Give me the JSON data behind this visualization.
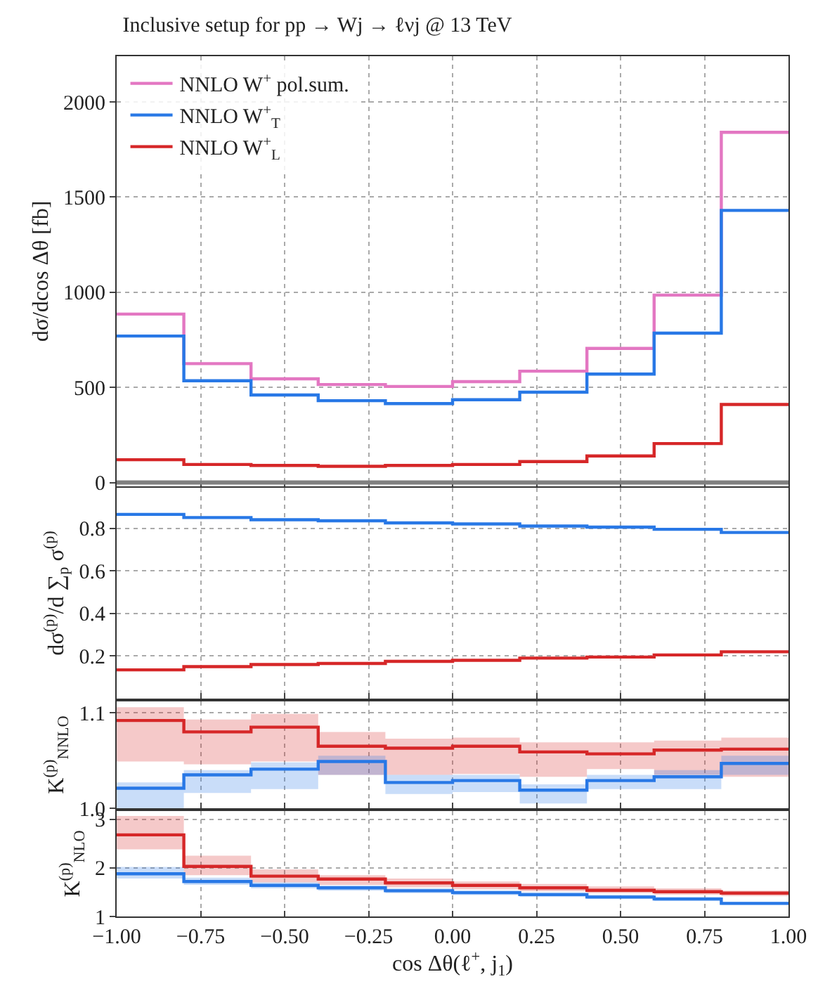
{
  "chart_data": [
    {
      "type": "step",
      "title": "Inclusive setup for pp → Wj → ℓνj @ 13 TeV",
      "ylabel": "dσ/dcos Δθ [fb]",
      "x": [
        -1,
        -0.8,
        -0.6,
        -0.4,
        -0.2,
        0,
        0.2,
        0.4,
        0.6,
        0.8,
        1
      ],
      "series": [
        {
          "name": "NNLO W$^{+}$ pol.sum.",
          "color": "#e377c2",
          "values": [
            885,
            625,
            545,
            515,
            505,
            530,
            585,
            705,
            985,
            1840,
            1840
          ]
        },
        {
          "name": "NNLO W$^{+}$$_{T}$",
          "color": "#2878e6",
          "values": [
            770,
            535,
            460,
            430,
            415,
            435,
            475,
            570,
            785,
            1430,
            1430
          ]
        },
        {
          "name": "NNLO W$^{+}$$_{L}$",
          "color": "#d62728",
          "values": [
            120,
            95,
            90,
            85,
            90,
            95,
            110,
            140,
            205,
            410,
            410
          ]
        }
      ],
      "xlim": [
        -1,
        1
      ],
      "xticks": [
        {
          "value": -1,
          "label": null
        },
        {
          "value": -0.75,
          "label": null
        },
        {
          "value": -0.5,
          "label": null
        },
        {
          "value": -0.25,
          "label": null
        },
        {
          "value": 0,
          "label": null
        },
        {
          "value": 0.25,
          "label": null
        },
        {
          "value": 0.5,
          "label": null
        },
        {
          "value": 0.75,
          "label": null
        },
        {
          "value": 1,
          "label": null
        }
      ],
      "ylim": [
        -20,
        2240
      ],
      "yticks": [
        0,
        500,
        1000,
        1500,
        2000
      ],
      "ref_lines": [
        {
          "axis": "y",
          "value": 0,
          "color": "#808080"
        }
      ],
      "grid": true,
      "legend": "top left",
      "tick_labels": "y"
    },
    {
      "type": "step",
      "ylabel": "dσ$^{(p)}$/d ∑$_{p}$ σ$^{(p)}$",
      "x": [
        -1,
        -0.8,
        -0.6,
        -0.4,
        -0.2,
        0,
        0.2,
        0.4,
        0.6,
        0.8,
        1
      ],
      "series": [
        {
          "color": "#2878e6",
          "values": [
            0.865,
            0.85,
            0.84,
            0.835,
            0.825,
            0.82,
            0.81,
            0.805,
            0.795,
            0.78,
            0.78
          ]
        },
        {
          "color": "#d62728",
          "values": [
            0.135,
            0.15,
            0.16,
            0.165,
            0.175,
            0.18,
            0.19,
            0.195,
            0.205,
            0.22,
            0.22
          ]
        }
      ],
      "xlim": [
        -1,
        1
      ],
      "xticks": [
        {
          "value": -1,
          "label": null
        },
        {
          "value": -0.75,
          "label": null
        },
        {
          "value": -0.5,
          "label": null
        },
        {
          "value": -0.25,
          "label": null
        },
        {
          "value": 0,
          "label": null
        },
        {
          "value": 0.25,
          "label": null
        },
        {
          "value": 0.5,
          "label": null
        },
        {
          "value": 0.75,
          "label": null
        },
        {
          "value": 1,
          "label": null
        }
      ],
      "ylim": [
        0,
        0.99
      ],
      "yticks": [
        0.2,
        0.4,
        0.6,
        0.8
      ],
      "grid": true,
      "tick_labels": "y"
    },
    {
      "type": "step",
      "ylabel": "K$^{(p)}$$_{NNLO}$",
      "x": [
        -1,
        -0.8,
        -0.6,
        -0.4,
        -0.2,
        0,
        0.2,
        0.4,
        0.6,
        0.8,
        1
      ],
      "series": [
        {
          "color": "#d62728",
          "values": [
            1.092,
            1.08,
            1.085,
            1.065,
            1.063,
            1.065,
            1.059,
            1.057,
            1.061,
            1.062,
            1.062
          ],
          "lower": [
            1.049,
            1.046,
            1.049,
            1.035,
            1.035,
            1.036,
            1.033,
            1.041,
            1.035,
            1.033,
            1.033
          ],
          "upper": [
            1.106,
            1.093,
            1.099,
            1.08,
            1.073,
            1.074,
            1.069,
            1.069,
            1.071,
            1.074,
            1.074
          ]
        },
        {
          "color": "#2878e6",
          "values": [
            1.021,
            1.035,
            1.041,
            1.049,
            1.027,
            1.029,
            1.019,
            1.029,
            1.033,
            1.047,
            1.047
          ],
          "lower": [
            1.0,
            1.016,
            1.02,
            1.035,
            1.015,
            1.017,
            1.005,
            1.02,
            1.02,
            1.035,
            1.035
          ],
          "upper": [
            1.027,
            1.04,
            1.048,
            1.055,
            1.035,
            1.035,
            1.025,
            1.035,
            1.04,
            1.055,
            1.055
          ]
        }
      ],
      "xlim": [
        -1,
        1
      ],
      "xticks": [
        {
          "value": -1,
          "label": null
        },
        {
          "value": -0.75,
          "label": null
        },
        {
          "value": -0.5,
          "label": null
        },
        {
          "value": -0.25,
          "label": null
        },
        {
          "value": 0,
          "label": null
        },
        {
          "value": 0.25,
          "label": null
        },
        {
          "value": 0.5,
          "label": null
        },
        {
          "value": 0.75,
          "label": null
        },
        {
          "value": 1,
          "label": null
        }
      ],
      "ylim": [
        1.0,
        1.112
      ],
      "yticks": [
        {
          "value": 1.0,
          "label": "1.0"
        },
        {
          "value": 1.1,
          "label": "1.1"
        }
      ],
      "grid": true,
      "tick_labels": "y"
    },
    {
      "type": "step",
      "ylabel": "K$^{(p)}$$_{NLO}$",
      "xlabel": "cos Δθ(ℓ$^{+}$, j$_{1}$)",
      "x": [
        -1,
        -0.8,
        -0.6,
        -0.4,
        -0.2,
        0,
        0.2,
        0.4,
        0.6,
        0.8,
        1
      ],
      "series": [
        {
          "color": "#d62728",
          "values": [
            2.68,
            2.03,
            1.83,
            1.77,
            1.69,
            1.64,
            1.59,
            1.54,
            1.51,
            1.48,
            1.48
          ],
          "lower": [
            2.38,
            1.85,
            1.7,
            1.65,
            1.6,
            1.56,
            1.52,
            1.48,
            1.45,
            1.42,
            1.42
          ],
          "upper": [
            3.07,
            2.25,
            1.97,
            1.85,
            1.78,
            1.72,
            1.67,
            1.62,
            1.58,
            1.53,
            1.53
          ]
        },
        {
          "color": "#2878e6",
          "values": [
            1.88,
            1.72,
            1.64,
            1.59,
            1.53,
            1.49,
            1.45,
            1.4,
            1.36,
            1.27,
            1.27
          ],
          "lower": [
            1.78,
            1.65,
            1.58,
            1.53,
            1.48,
            1.44,
            1.4,
            1.36,
            1.32,
            1.24,
            1.24
          ],
          "upper": [
            2.02,
            1.8,
            1.7,
            1.64,
            1.58,
            1.54,
            1.5,
            1.45,
            1.4,
            1.3,
            1.3
          ]
        }
      ],
      "xlim": [
        -1,
        1
      ],
      "xticks": [
        {
          "value": -1,
          "label": "−1.00"
        },
        {
          "value": -0.75,
          "label": "−0.75"
        },
        {
          "value": -0.5,
          "label": "−0.50"
        },
        {
          "value": -0.25,
          "label": "−0.25"
        },
        {
          "value": 0,
          "label": "0.00"
        },
        {
          "value": 0.25,
          "label": "0.25"
        },
        {
          "value": 0.5,
          "label": "0.50"
        },
        {
          "value": 0.75,
          "label": "0.75"
        },
        {
          "value": 1,
          "label": "1.00"
        }
      ],
      "ylim": [
        1,
        3.17
      ],
      "yticks": [
        1,
        2,
        3
      ],
      "grid": true
    }
  ]
}
